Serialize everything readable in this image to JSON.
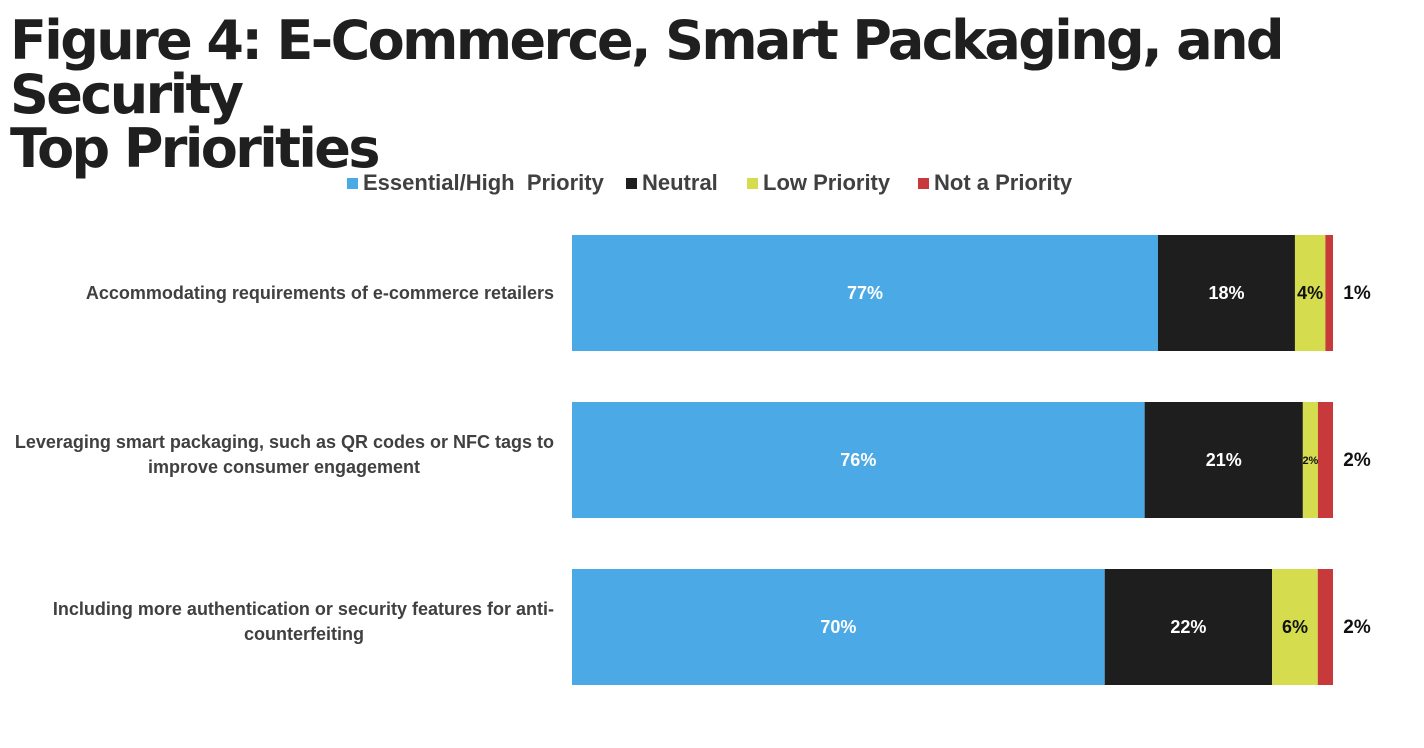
{
  "title": {
    "line1": "Figure 4: E-Commerce, Smart Packaging, and Security",
    "line2": "Top Priorities"
  },
  "colors": {
    "essential": "#4BA9E6",
    "neutral": "#1E1E1E",
    "low": "#D5DD4E",
    "not": "#C8393B"
  },
  "chart_data": {
    "type": "bar",
    "orientation": "horizontal",
    "stacked": true,
    "title": "Figure 4: E-Commerce, Smart Packaging, and Security Top Priorities",
    "legend_position": "top",
    "legend": [
      "Essential/High  Priority",
      "Neutral",
      "Low Priority",
      "Not a Priority"
    ],
    "categories": [
      [
        "Accommodating requirements of e-commerce retailers"
      ],
      [
        "Leveraging smart packaging, such as QR codes or NFC tags to",
        "improve consumer engagement"
      ],
      [
        "Including more authentication or security features for anti-",
        "counterfeiting"
      ]
    ],
    "series": [
      {
        "name": "Essential/High  Priority",
        "values": [
          77,
          76,
          70
        ],
        "labels": [
          "77%",
          "76%",
          "70%"
        ]
      },
      {
        "name": "Neutral",
        "values": [
          18,
          21,
          22
        ],
        "labels": [
          "18%",
          "21%",
          "22%"
        ]
      },
      {
        "name": "Low Priority",
        "values": [
          4,
          2,
          6
        ],
        "labels": [
          "4%",
          "2%",
          "6%"
        ]
      },
      {
        "name": "Not a Priority",
        "values": [
          1,
          2,
          2
        ],
        "labels": [
          "1%",
          "2%",
          "2%"
        ]
      }
    ]
  }
}
